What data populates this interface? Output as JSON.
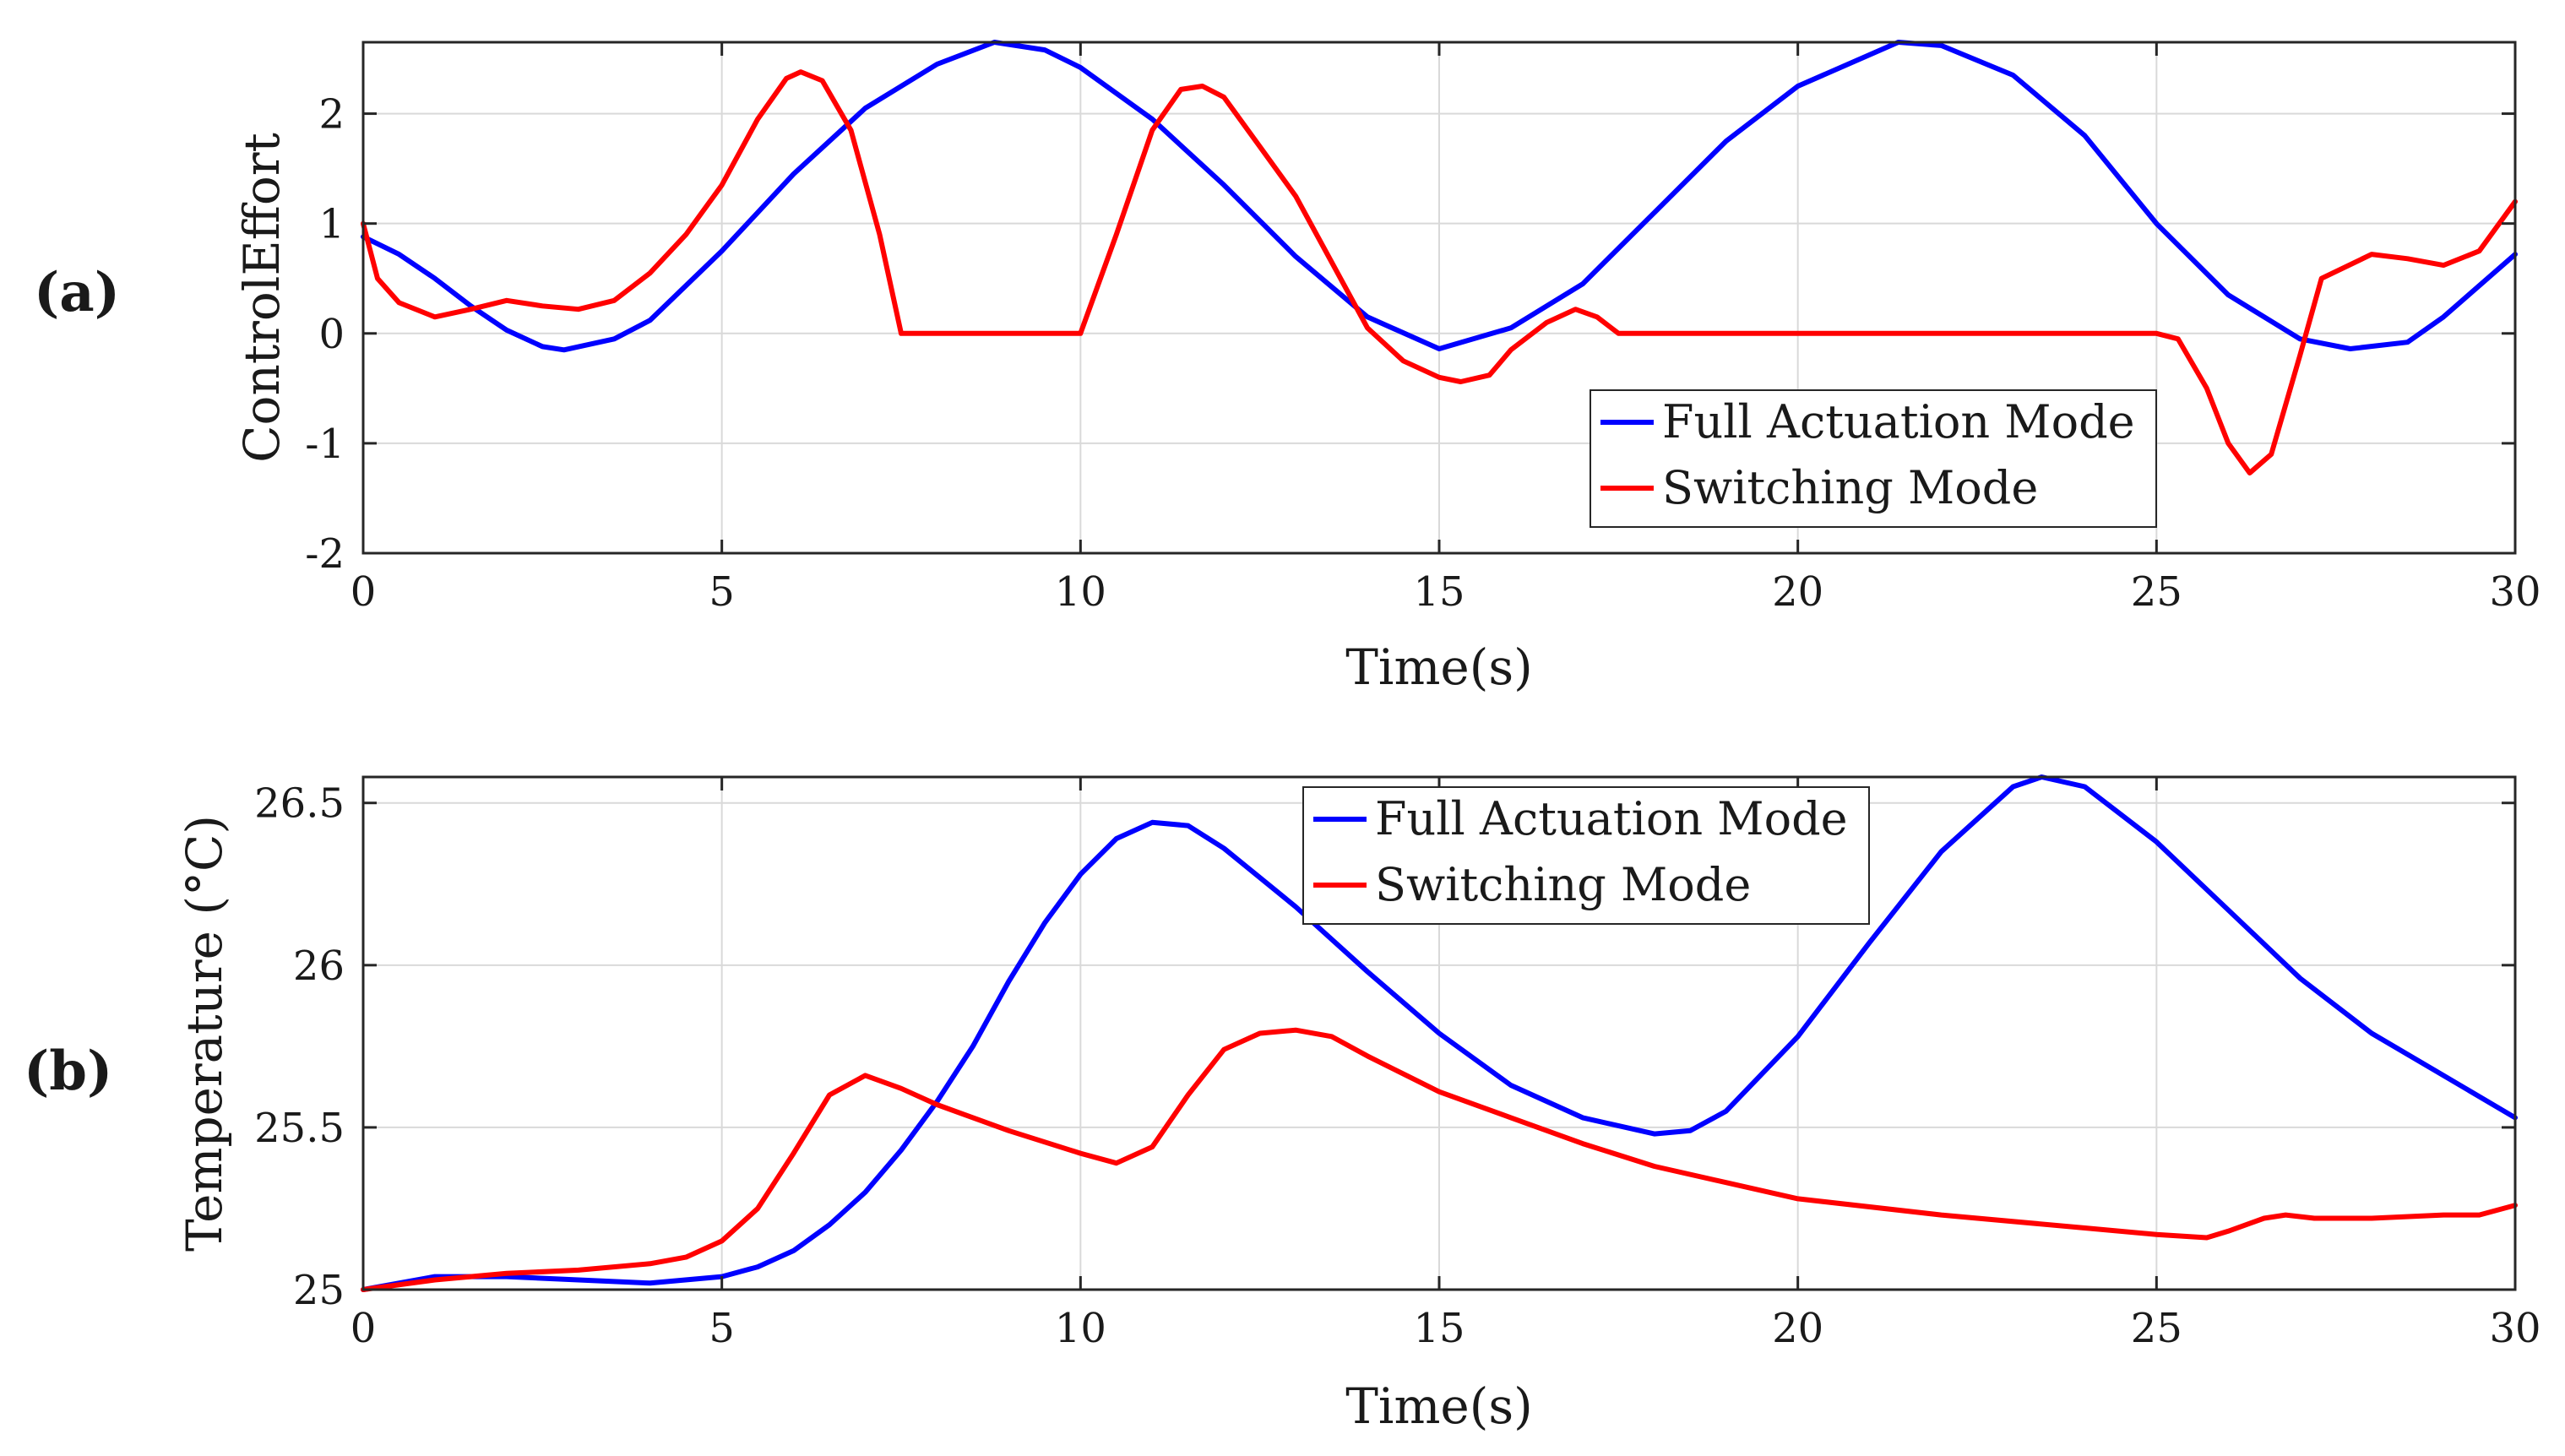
{
  "chart_data": [
    {
      "panel_label": "(a)",
      "type": "line",
      "xlabel": "Time(s)",
      "ylabel": "ControlEffort",
      "xlim": [
        0,
        30
      ],
      "ylim": [
        -2,
        2.65
      ],
      "xticks": [
        0,
        5,
        10,
        15,
        20,
        25,
        30
      ],
      "yticks": [
        -2,
        -1,
        0,
        1,
        2
      ],
      "grid": true,
      "legend_position": "bottom-right",
      "series": [
        {
          "name": "Full Actuation Mode",
          "color": "#0000ff",
          "x": [
            0,
            0.5,
            1,
            1.5,
            2,
            2.5,
            2.8,
            3.5,
            4,
            5,
            6,
            7,
            8,
            8.8,
            9.5,
            10,
            11,
            12,
            13,
            14,
            15,
            16,
            17,
            18,
            19,
            20,
            21.4,
            22,
            23,
            24,
            25,
            26,
            27,
            27.7,
            28.5,
            29,
            30
          ],
          "y": [
            0.88,
            0.72,
            0.5,
            0.25,
            0.03,
            -0.12,
            -0.15,
            -0.05,
            0.12,
            0.75,
            1.45,
            2.05,
            2.45,
            2.65,
            2.58,
            2.42,
            1.95,
            1.35,
            0.7,
            0.15,
            -0.14,
            0.05,
            0.45,
            1.1,
            1.75,
            2.25,
            2.65,
            2.62,
            2.35,
            1.8,
            1.0,
            0.35,
            -0.05,
            -0.14,
            -0.08,
            0.15,
            0.72
          ]
        },
        {
          "name": "Switching Mode",
          "color": "#ff0000",
          "x": [
            0,
            0.2,
            0.5,
            1,
            1.5,
            2,
            2.5,
            3,
            3.5,
            4,
            4.5,
            5,
            5.5,
            5.9,
            6.1,
            6.4,
            6.8,
            7.2,
            7.5,
            8,
            9,
            10,
            10.5,
            11,
            11.4,
            11.7,
            12,
            12.5,
            13,
            13.5,
            14,
            14.5,
            15,
            15.3,
            15.7,
            16,
            16.5,
            16.9,
            17.2,
            17.5,
            18,
            20,
            22,
            24,
            25,
            25.3,
            25.7,
            26,
            26.3,
            26.6,
            27,
            27.3,
            28,
            28.5,
            29,
            29.5,
            30
          ],
          "y": [
            1.0,
            0.5,
            0.28,
            0.15,
            0.22,
            0.3,
            0.25,
            0.22,
            0.3,
            0.55,
            0.9,
            1.35,
            1.95,
            2.32,
            2.38,
            2.3,
            1.85,
            0.9,
            0.0,
            0.0,
            0.0,
            0.0,
            0.9,
            1.85,
            2.22,
            2.25,
            2.15,
            1.7,
            1.25,
            0.65,
            0.05,
            -0.25,
            -0.4,
            -0.44,
            -0.38,
            -0.15,
            0.1,
            0.22,
            0.15,
            0.0,
            0.0,
            0.0,
            0.0,
            0.0,
            0.0,
            -0.05,
            -0.5,
            -1.0,
            -1.27,
            -1.1,
            -0.2,
            0.5,
            0.72,
            0.68,
            0.62,
            0.75,
            1.2
          ]
        }
      ]
    },
    {
      "panel_label": "(b)",
      "type": "line",
      "xlabel": "Time(s)",
      "ylabel": "Temperature (°C)",
      "xlim": [
        0,
        30
      ],
      "ylim": [
        25,
        26.58
      ],
      "xticks": [
        0,
        5,
        10,
        15,
        20,
        25,
        30
      ],
      "yticks": [
        25,
        25.5,
        26,
        26.5
      ],
      "grid": true,
      "legend_position": "top-center",
      "series": [
        {
          "name": "Full Actuation Mode",
          "color": "#0000ff",
          "x": [
            0,
            1,
            2,
            3,
            4,
            5,
            5.5,
            6,
            6.5,
            7,
            7.5,
            8,
            8.5,
            9,
            9.5,
            10,
            10.5,
            11,
            11.5,
            12,
            13,
            14,
            15,
            16,
            17,
            18,
            18.5,
            19,
            20,
            21,
            22,
            23,
            23.4,
            24,
            25,
            26,
            27,
            28,
            29,
            30
          ],
          "y": [
            25.0,
            25.04,
            25.04,
            25.03,
            25.02,
            25.04,
            25.07,
            25.12,
            25.2,
            25.3,
            25.43,
            25.58,
            25.75,
            25.95,
            26.13,
            26.28,
            26.39,
            26.44,
            26.43,
            26.36,
            26.18,
            25.98,
            25.79,
            25.63,
            25.53,
            25.48,
            25.49,
            25.55,
            25.78,
            26.07,
            26.35,
            26.55,
            26.58,
            26.55,
            26.38,
            26.17,
            25.96,
            25.79,
            25.66,
            25.53
          ]
        },
        {
          "name": "Switching Mode",
          "color": "#ff0000",
          "x": [
            0,
            1,
            2,
            3,
            4,
            4.5,
            5,
            5.5,
            6,
            6.5,
            7,
            7.5,
            8,
            9,
            10,
            10.5,
            11,
            11.5,
            12,
            12.5,
            13,
            13.5,
            14,
            15,
            16,
            17,
            18,
            20,
            22,
            24,
            25,
            25.7,
            26,
            26.5,
            26.8,
            27.2,
            28,
            29,
            29.5,
            30
          ],
          "y": [
            25.0,
            25.03,
            25.05,
            25.06,
            25.08,
            25.1,
            25.15,
            25.25,
            25.42,
            25.6,
            25.66,
            25.62,
            25.57,
            25.49,
            25.42,
            25.39,
            25.44,
            25.6,
            25.74,
            25.79,
            25.8,
            25.78,
            25.72,
            25.61,
            25.53,
            25.45,
            25.38,
            25.28,
            25.23,
            25.19,
            25.17,
            25.16,
            25.18,
            25.22,
            25.23,
            25.22,
            25.22,
            25.23,
            25.23,
            25.26
          ]
        }
      ]
    }
  ]
}
